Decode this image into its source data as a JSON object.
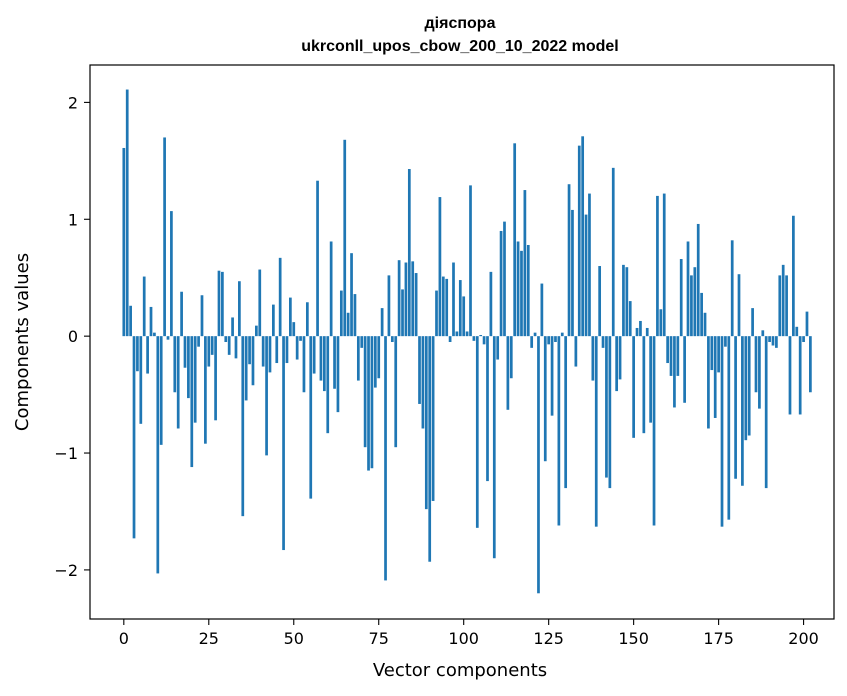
{
  "chart_data": {
    "type": "bar",
    "title": "діяспора",
    "subtitle": "ukrconll_upos_cbow_200_10_2022 model",
    "xlabel": "Vector components",
    "ylabel": "Components values",
    "xlim": [
      -9.95,
      208.95
    ],
    "ylim": [
      -2.42,
      2.32
    ],
    "xticks": [
      0,
      25,
      50,
      75,
      100,
      125,
      150,
      175,
      200
    ],
    "yticks": [
      -2,
      -1,
      0,
      1,
      2
    ],
    "ytick_labels": [
      "−2",
      "−1",
      "0",
      "1",
      "2"
    ],
    "bar_color": "#1f77b4",
    "grid": false,
    "values": [
      1.61,
      2.11,
      0.26,
      -1.73,
      -0.3,
      -0.75,
      0.51,
      -0.32,
      0.25,
      0.03,
      -2.03,
      -0.93,
      1.7,
      -0.03,
      1.07,
      -0.48,
      -0.79,
      0.38,
      -0.27,
      -0.53,
      -1.12,
      -0.74,
      -0.09,
      0.35,
      -0.92,
      -0.26,
      -0.16,
      -0.72,
      0.56,
      0.55,
      -0.05,
      -0.16,
      0.16,
      -0.19,
      0.47,
      -1.54,
      -0.55,
      -0.24,
      -0.42,
      0.09,
      0.57,
      -0.26,
      -1.02,
      -0.31,
      0.27,
      -0.23,
      0.67,
      -1.83,
      -0.23,
      0.33,
      0.12,
      -0.2,
      -0.04,
      -0.48,
      0.29,
      -1.39,
      -0.32,
      1.33,
      -0.38,
      -0.47,
      -0.83,
      0.81,
      -0.45,
      -0.65,
      0.39,
      1.68,
      0.2,
      0.71,
      0.36,
      -0.38,
      -0.1,
      -0.95,
      -1.15,
      -1.13,
      -0.44,
      -0.36,
      0.24,
      -2.09,
      0.52,
      -0.05,
      -0.95,
      0.65,
      0.4,
      0.63,
      1.43,
      0.64,
      0.54,
      -0.58,
      -0.79,
      -1.48,
      -1.93,
      -1.41,
      0.39,
      1.19,
      0.51,
      0.49,
      -0.05,
      0.63,
      0.04,
      0.48,
      0.34,
      0.04,
      1.29,
      -0.04,
      -1.64,
      0.01,
      -0.07,
      -1.24,
      0.55,
      -1.9,
      -0.2,
      0.9,
      0.98,
      -0.63,
      -0.36,
      1.65,
      0.81,
      0.73,
      1.25,
      0.78,
      -0.1,
      0.03,
      -2.2,
      0.45,
      -1.07,
      -0.07,
      -0.68,
      -0.05,
      -1.62,
      0.03,
      -1.3,
      1.3,
      1.08,
      -0.26,
      1.63,
      1.71,
      1.04,
      1.22,
      -0.38,
      -1.63,
      0.6,
      -0.1,
      -1.21,
      -1.3,
      1.44,
      -0.47,
      -0.37,
      0.61,
      0.59,
      0.3,
      -0.87,
      0.07,
      0.13,
      -0.83,
      0.07,
      -0.74,
      -1.62,
      1.2,
      0.23,
      1.22,
      -0.23,
      -0.34,
      -0.61,
      -0.34,
      0.66,
      -0.57,
      0.81,
      0.52,
      0.59,
      0.96,
      0.37,
      0.2,
      -0.79,
      -0.29,
      -0.7,
      -0.31,
      -1.63,
      -0.09,
      -1.57,
      0.82,
      -1.22,
      0.53,
      -1.28,
      -0.89,
      -0.85,
      0.24,
      -0.48,
      -0.62,
      0.05,
      -1.3,
      -0.05,
      -0.08,
      -0.1,
      0.52,
      0.61,
      0.52,
      -0.67,
      1.03,
      0.08,
      -0.67,
      -0.05,
      0.21,
      -0.48
    ]
  }
}
